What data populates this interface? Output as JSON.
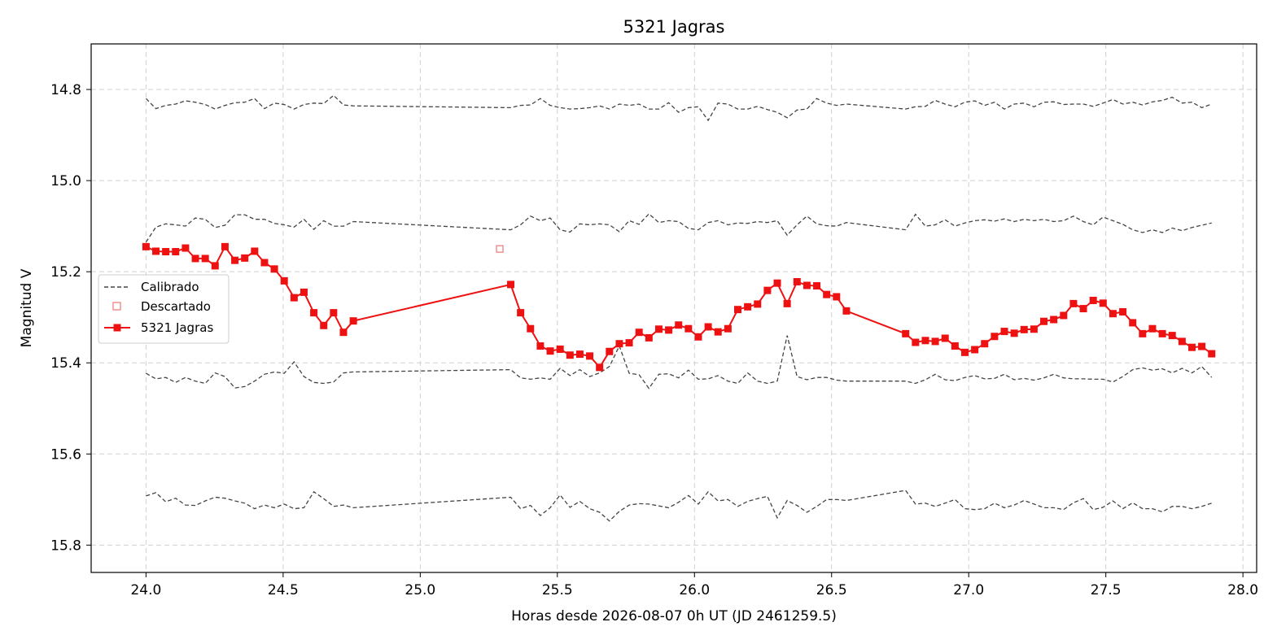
{
  "chart_data": {
    "type": "line",
    "title": "5321 Jagras",
    "xlabel": "Horas desde 2026-08-07 0h UT (JD 2461259.5)",
    "ylabel": "Magnitud V",
    "xlim": [
      23.8,
      28.05
    ],
    "ylim": [
      15.86,
      14.7
    ],
    "y_inverted": true,
    "grid": true,
    "legend_position": "center-left",
    "x_ticks": [
      24.0,
      24.5,
      25.0,
      25.5,
      26.0,
      26.5,
      27.0,
      27.5,
      28.0
    ],
    "x_tick_labels": [
      "24.0",
      "24.5",
      "25.0",
      "25.5",
      "26.0",
      "26.5",
      "27.0",
      "27.5",
      "28.0"
    ],
    "y_ticks": [
      14.8,
      15.0,
      15.2,
      15.4,
      15.6,
      15.8
    ],
    "y_tick_labels": [
      "14.8",
      "15.0",
      "15.2",
      "15.4",
      "15.6",
      "15.8"
    ],
    "legend": [
      "Calibrado",
      "Descartado",
      "5321 Jagras"
    ],
    "colors": {
      "target": "#ee1111",
      "calibrated": "#444444",
      "discarded": "#f08080",
      "grid": "#d0d0d0"
    },
    "series": [
      {
        "name": "5321 Jagras",
        "role": "target",
        "x": [
          24.0,
          24.036,
          24.072,
          24.108,
          24.144,
          24.18,
          24.216,
          24.252,
          24.288,
          24.324,
          24.36,
          24.396,
          24.432,
          24.468,
          24.504,
          24.54,
          24.576,
          24.612,
          24.648,
          24.684,
          24.72,
          24.756,
          25.33,
          25.366,
          25.402,
          25.438,
          25.474,
          25.51,
          25.546,
          25.582,
          25.618,
          25.654,
          25.69,
          25.726,
          25.762,
          25.798,
          25.834,
          25.87,
          25.906,
          25.942,
          25.978,
          26.014,
          26.05,
          26.086,
          26.122,
          26.158,
          26.194,
          26.23,
          26.266,
          26.302,
          26.338,
          26.374,
          26.41,
          26.446,
          26.482,
          26.518,
          26.554,
          26.77,
          26.806,
          26.842,
          26.878,
          26.914,
          26.95,
          26.986,
          27.022,
          27.058,
          27.094,
          27.13,
          27.166,
          27.202,
          27.238,
          27.274,
          27.31,
          27.346,
          27.382,
          27.418,
          27.454,
          27.49,
          27.526,
          27.562,
          27.598,
          27.634,
          27.67,
          27.706,
          27.742,
          27.778,
          27.814,
          27.85,
          27.886
        ],
        "y": [
          15.145,
          15.155,
          15.156,
          15.156,
          15.148,
          15.171,
          15.171,
          15.187,
          15.145,
          15.175,
          15.17,
          15.155,
          15.18,
          15.194,
          15.22,
          15.257,
          15.245,
          15.29,
          15.318,
          15.29,
          15.333,
          15.308,
          15.228,
          15.29,
          15.325,
          15.363,
          15.374,
          15.37,
          15.383,
          15.381,
          15.385,
          15.41,
          15.375,
          15.358,
          15.356,
          15.333,
          15.345,
          15.326,
          15.328,
          15.317,
          15.325,
          15.343,
          15.321,
          15.332,
          15.325,
          15.283,
          15.277,
          15.271,
          15.241,
          15.225,
          15.27,
          15.222,
          15.23,
          15.231,
          15.25,
          15.255,
          15.286,
          15.336,
          15.355,
          15.351,
          15.353,
          15.346,
          15.363,
          15.377,
          15.371,
          15.358,
          15.342,
          15.331,
          15.335,
          15.327,
          15.326,
          15.309,
          15.305,
          15.296,
          15.27,
          15.281,
          15.263,
          15.269,
          15.292,
          15.288,
          15.312,
          15.336,
          15.325,
          15.336,
          15.34,
          15.353,
          15.366,
          15.364,
          15.38
        ]
      },
      {
        "name": "Descartado",
        "role": "discarded",
        "x": [
          25.29
        ],
        "y": [
          15.15
        ]
      },
      {
        "name": "Calibrado",
        "role": "calibrated",
        "x": [
          24.0,
          24.036,
          24.072,
          24.108,
          24.144,
          24.18,
          24.216,
          24.252,
          24.288,
          24.324,
          24.36,
          24.396,
          24.432,
          24.468,
          24.504,
          24.54,
          24.576,
          24.612,
          24.648,
          24.684,
          24.72,
          24.756,
          25.33,
          25.366,
          25.402,
          25.438,
          25.474,
          25.51,
          25.546,
          25.582,
          25.618,
          25.654,
          25.69,
          25.726,
          25.762,
          25.798,
          25.834,
          25.87,
          25.906,
          25.942,
          25.978,
          26.014,
          26.05,
          26.086,
          26.122,
          26.158,
          26.194,
          26.23,
          26.266,
          26.302,
          26.338,
          26.374,
          26.41,
          26.446,
          26.482,
          26.518,
          26.554,
          26.77,
          26.806,
          26.842,
          26.878,
          26.914,
          26.95,
          26.986,
          27.022,
          27.058,
          27.094,
          27.13,
          27.166,
          27.202,
          27.238,
          27.274,
          27.31,
          27.346,
          27.382,
          27.418,
          27.454,
          27.49,
          27.526,
          27.562,
          27.598,
          27.634,
          27.67,
          27.706,
          27.742,
          27.778,
          27.814,
          27.85,
          27.886
        ],
        "y": [
          14.82,
          14.842,
          14.835,
          14.832,
          14.825,
          14.828,
          14.833,
          14.843,
          14.835,
          14.829,
          14.828,
          14.82,
          14.842,
          14.83,
          14.833,
          14.843,
          14.833,
          14.83,
          14.831,
          14.813,
          14.834,
          14.836,
          14.84,
          14.835,
          14.834,
          14.82,
          14.835,
          14.84,
          14.843,
          14.842,
          14.84,
          14.836,
          14.843,
          14.832,
          14.835,
          14.832,
          14.843,
          14.843,
          14.829,
          14.85,
          14.84,
          14.838,
          14.868,
          14.83,
          14.832,
          14.843,
          14.843,
          14.837,
          14.844,
          14.85,
          14.862,
          14.845,
          14.843,
          14.82,
          14.83,
          14.835,
          14.832,
          14.843,
          14.838,
          14.837,
          14.824,
          14.832,
          14.838,
          14.828,
          14.825,
          14.835,
          14.828,
          14.843,
          14.832,
          14.83,
          14.838,
          14.828,
          14.827,
          14.833,
          14.832,
          14.832,
          14.837,
          14.83,
          14.822,
          14.832,
          14.828,
          14.834,
          14.827,
          14.824,
          14.817,
          14.83,
          14.828,
          14.84,
          14.832
        ]
      },
      {
        "name": "Calibrado",
        "role": "calibrated",
        "x": [
          24.0,
          24.036,
          24.072,
          24.108,
          24.144,
          24.18,
          24.216,
          24.252,
          24.288,
          24.324,
          24.36,
          24.396,
          24.432,
          24.468,
          24.504,
          24.54,
          24.576,
          24.612,
          24.648,
          24.684,
          24.72,
          24.756,
          25.33,
          25.366,
          25.402,
          25.438,
          25.474,
          25.51,
          25.546,
          25.582,
          25.618,
          25.654,
          25.69,
          25.726,
          25.762,
          25.798,
          25.834,
          25.87,
          25.906,
          25.942,
          25.978,
          26.014,
          26.05,
          26.086,
          26.122,
          26.158,
          26.194,
          26.23,
          26.266,
          26.302,
          26.338,
          26.374,
          26.41,
          26.446,
          26.482,
          26.518,
          26.554,
          26.77,
          26.806,
          26.842,
          26.878,
          26.914,
          26.95,
          26.986,
          27.022,
          27.058,
          27.094,
          27.13,
          27.166,
          27.202,
          27.238,
          27.274,
          27.31,
          27.346,
          27.382,
          27.418,
          27.454,
          27.49,
          27.526,
          27.562,
          27.598,
          27.634,
          27.67,
          27.706,
          27.742,
          27.778,
          27.814,
          27.85,
          27.886
        ],
        "y": [
          15.135,
          15.102,
          15.095,
          15.097,
          15.1,
          15.082,
          15.085,
          15.103,
          15.098,
          15.075,
          15.075,
          15.085,
          15.085,
          15.094,
          15.097,
          15.102,
          15.085,
          15.107,
          15.088,
          15.1,
          15.1,
          15.09,
          15.108,
          15.097,
          15.078,
          15.088,
          15.082,
          15.108,
          15.113,
          15.095,
          15.097,
          15.095,
          15.097,
          15.112,
          15.088,
          15.096,
          15.073,
          15.092,
          15.088,
          15.09,
          15.105,
          15.108,
          15.092,
          15.088,
          15.097,
          15.093,
          15.094,
          15.09,
          15.092,
          15.088,
          15.12,
          15.097,
          15.078,
          15.095,
          15.099,
          15.1,
          15.092,
          15.108,
          15.074,
          15.1,
          15.097,
          15.086,
          15.1,
          15.093,
          15.088,
          15.086,
          15.089,
          15.084,
          15.09,
          15.085,
          15.088,
          15.085,
          15.09,
          15.088,
          15.078,
          15.09,
          15.097,
          15.08,
          15.088,
          15.096,
          15.108,
          15.114,
          15.108,
          15.114,
          15.104,
          15.11,
          15.103,
          15.098,
          15.093
        ]
      },
      {
        "name": "Calibrado",
        "role": "calibrated",
        "x": [
          24.0,
          24.036,
          24.072,
          24.108,
          24.144,
          24.18,
          24.216,
          24.252,
          24.288,
          24.324,
          24.36,
          24.396,
          24.432,
          24.468,
          24.504,
          24.54,
          24.576,
          24.612,
          24.648,
          24.684,
          24.72,
          24.756,
          25.33,
          25.366,
          25.402,
          25.438,
          25.474,
          25.51,
          25.546,
          25.582,
          25.618,
          25.654,
          25.69,
          25.726,
          25.762,
          25.798,
          25.834,
          25.87,
          25.906,
          25.942,
          25.978,
          26.014,
          26.05,
          26.086,
          26.122,
          26.158,
          26.194,
          26.23,
          26.266,
          26.302,
          26.338,
          26.374,
          26.41,
          26.446,
          26.482,
          26.518,
          26.554,
          26.77,
          26.806,
          26.842,
          26.878,
          26.914,
          26.95,
          26.986,
          27.022,
          27.058,
          27.094,
          27.13,
          27.166,
          27.202,
          27.238,
          27.274,
          27.31,
          27.346,
          27.382,
          27.418,
          27.454,
          27.49,
          27.526,
          27.562,
          27.598,
          27.634,
          27.67,
          27.706,
          27.742,
          27.778,
          27.814,
          27.85,
          27.886
        ],
        "y": [
          15.423,
          15.435,
          15.432,
          15.443,
          15.432,
          15.44,
          15.445,
          15.422,
          15.43,
          15.455,
          15.452,
          15.44,
          15.425,
          15.42,
          15.423,
          15.398,
          15.43,
          15.443,
          15.445,
          15.442,
          15.422,
          15.42,
          15.415,
          15.433,
          15.436,
          15.433,
          15.436,
          15.412,
          15.428,
          15.415,
          15.43,
          15.422,
          15.408,
          15.363,
          15.423,
          15.426,
          15.456,
          15.425,
          15.424,
          15.433,
          15.416,
          15.436,
          15.435,
          15.428,
          15.44,
          15.445,
          15.422,
          15.44,
          15.445,
          15.44,
          15.34,
          15.43,
          15.437,
          15.432,
          15.432,
          15.438,
          15.44,
          15.44,
          15.445,
          15.437,
          15.425,
          15.437,
          15.439,
          15.432,
          15.428,
          15.435,
          15.434,
          15.425,
          15.437,
          15.434,
          15.438,
          15.433,
          15.425,
          15.433,
          15.435,
          15.435,
          15.436,
          15.436,
          15.442,
          15.43,
          15.415,
          15.411,
          15.416,
          15.413,
          15.422,
          15.412,
          15.422,
          15.408,
          15.432
        ]
      },
      {
        "name": "Calibrado",
        "role": "calibrated",
        "x": [
          24.0,
          24.036,
          24.072,
          24.108,
          24.144,
          24.18,
          24.216,
          24.252,
          24.288,
          24.324,
          24.36,
          24.396,
          24.432,
          24.468,
          24.504,
          24.54,
          24.576,
          24.612,
          24.648,
          24.684,
          24.72,
          24.756,
          25.33,
          25.366,
          25.402,
          25.438,
          25.474,
          25.51,
          25.546,
          25.582,
          25.618,
          25.654,
          25.69,
          25.726,
          25.762,
          25.798,
          25.834,
          25.87,
          25.906,
          25.942,
          25.978,
          26.014,
          26.05,
          26.086,
          26.122,
          26.158,
          26.194,
          26.23,
          26.266,
          26.302,
          26.338,
          26.374,
          26.41,
          26.446,
          26.482,
          26.518,
          26.554,
          26.77,
          26.806,
          26.842,
          26.878,
          26.914,
          26.95,
          26.986,
          27.022,
          27.058,
          27.094,
          27.13,
          27.166,
          27.202,
          27.238,
          27.274,
          27.31,
          27.346,
          27.382,
          27.418,
          27.454,
          27.49,
          27.526,
          27.562,
          27.598,
          27.634,
          27.67,
          27.706,
          27.742,
          27.778,
          27.814,
          27.85,
          27.886
        ],
        "y": [
          15.692,
          15.685,
          15.705,
          15.697,
          15.712,
          15.713,
          15.703,
          15.695,
          15.697,
          15.703,
          15.708,
          15.72,
          15.712,
          15.718,
          15.71,
          15.72,
          15.718,
          15.683,
          15.698,
          15.715,
          15.712,
          15.718,
          15.695,
          15.72,
          15.713,
          15.735,
          15.718,
          15.69,
          15.717,
          15.704,
          15.72,
          15.728,
          15.747,
          15.726,
          15.712,
          15.709,
          15.71,
          15.714,
          15.718,
          15.706,
          15.691,
          15.71,
          15.683,
          15.703,
          15.7,
          15.715,
          15.704,
          15.698,
          15.693,
          15.74,
          15.702,
          15.713,
          15.728,
          15.715,
          15.7,
          15.7,
          15.702,
          15.68,
          15.71,
          15.708,
          15.715,
          15.708,
          15.7,
          15.72,
          15.722,
          15.72,
          15.708,
          15.718,
          15.712,
          15.702,
          15.71,
          15.718,
          15.718,
          15.722,
          15.707,
          15.698,
          15.722,
          15.717,
          15.703,
          15.72,
          15.707,
          15.72,
          15.72,
          15.727,
          15.715,
          15.715,
          15.72,
          15.715,
          15.708
        ]
      }
    ]
  }
}
